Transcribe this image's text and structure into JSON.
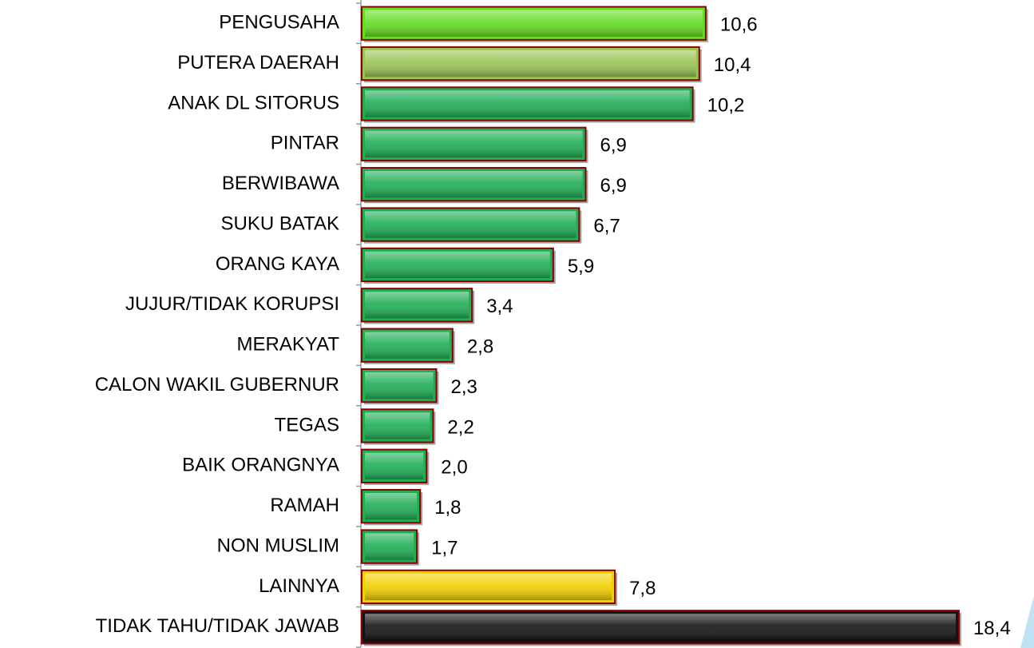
{
  "chart_data": {
    "type": "barh",
    "categories": [
      "PENGUSAHA",
      "PUTERA DAERAH",
      "ANAK DL SITORUS",
      "PINTAR",
      "BERWIBAWA",
      "SUKU BATAK",
      "ORANG KAYA",
      "JUJUR/TIDAK KORUPSI",
      "MERAKYAT",
      "CALON WAKIL GUBERNUR",
      "TEGAS",
      "BAIK ORANGNYA",
      "RAMAH",
      "NON MUSLIM",
      "LAINNYA",
      "TIDAK TAHU/TIDAK JAWAB"
    ],
    "values": [
      10.6,
      10.4,
      10.2,
      6.9,
      6.9,
      6.7,
      5.9,
      3.4,
      2.8,
      2.3,
      2.2,
      2.0,
      1.8,
      1.7,
      7.8,
      18.4
    ],
    "value_labels": [
      "10,6",
      "10,4",
      "10,2",
      "6,9",
      "6,9",
      "6,7",
      "5,9",
      "3,4",
      "2,8",
      "2,3",
      "2,2",
      "2,0",
      "1,8",
      "1,7",
      "7,8",
      "18,4"
    ],
    "colors": [
      "#66dd22",
      "#99c454",
      "#1fae55",
      "#1fae55",
      "#1fae55",
      "#1fae55",
      "#1fae55",
      "#1fae55",
      "#1fae55",
      "#1fae55",
      "#1fae55",
      "#1fae55",
      "#1fae55",
      "#1fae55",
      "#f2d000",
      "#141414"
    ],
    "edgecolor": "#8b0000",
    "xlim": [
      0,
      20
    ]
  }
}
